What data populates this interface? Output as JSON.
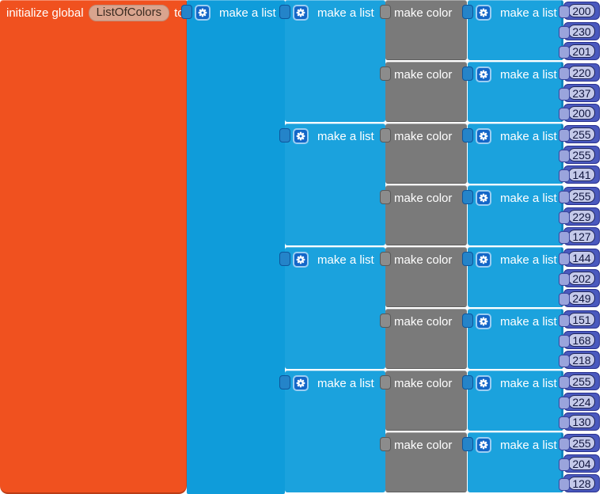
{
  "blocks": {
    "init_prefix": "initialize global",
    "variable_name": "ListOfColors",
    "init_suffix": "to",
    "make_list_label": "make a list",
    "make_color_label": "make color"
  },
  "colors": {
    "variable_orange": "#F0511F",
    "list_blue": "#1BA2DD",
    "outer_list_blue": "#0F9CDA",
    "make_color_gray": "#7A7A7A",
    "number_block_blue": "#4A59BE",
    "number_field_lavender": "#C4C9E9",
    "gear_button_blue": "#1366C8",
    "variable_field_tan": "#D9A48E"
  },
  "list_of_colors": [
    {
      "colors": [
        {
          "rgb": [
            200,
            230,
            201
          ]
        },
        {
          "rgb": [
            220,
            237,
            200
          ]
        }
      ]
    },
    {
      "colors": [
        {
          "rgb": [
            255,
            255,
            141
          ]
        },
        {
          "rgb": [
            255,
            229,
            127
          ]
        }
      ]
    },
    {
      "colors": [
        {
          "rgb": [
            144,
            202,
            249
          ]
        },
        {
          "rgb": [
            151,
            168,
            218
          ]
        }
      ]
    },
    {
      "colors": [
        {
          "rgb": [
            255,
            224,
            130
          ]
        },
        {
          "rgb": [
            255,
            204,
            128
          ]
        }
      ]
    }
  ]
}
